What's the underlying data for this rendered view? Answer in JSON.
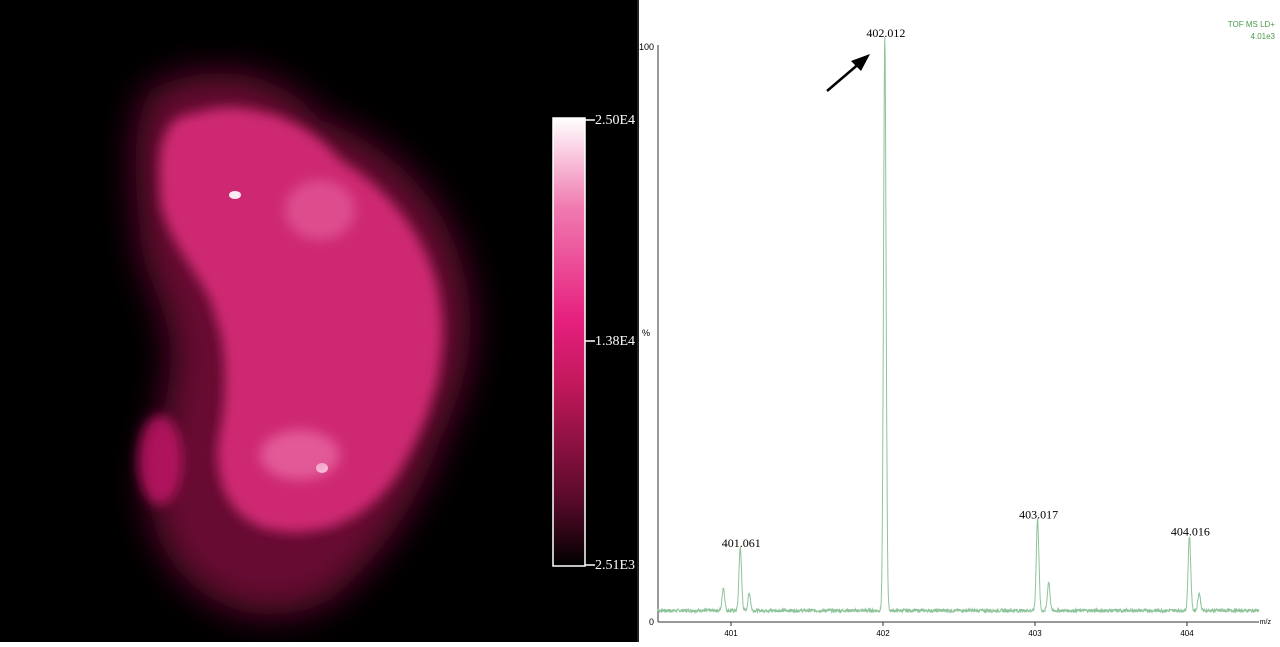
{
  "image_panel": {
    "colorbar": {
      "max_label": "2.50E4",
      "mid_label": "1.38E4",
      "min_label": "2.51E3",
      "colors": [
        "#000000",
        "#5a0a2a",
        "#c0185a",
        "#e6207e",
        "#f07ab0",
        "#ffffff"
      ]
    }
  },
  "spectrum_panel": {
    "header_line1": "TOF MS LD+",
    "header_line2": "4.01e3",
    "header_color": "#4a9a4a",
    "trace_color": "#8fc49a",
    "y_tick_top": "100",
    "y_tick_bottom": "0",
    "y_side_mark": "%",
    "x_unit_label": "m/z",
    "arrow_color": "#000000"
  },
  "chart_data": {
    "type": "line",
    "x_ticks": [
      "401",
      "402",
      "403",
      "404"
    ],
    "xlim": [
      400.5,
      405.0
    ],
    "ylim": [
      0,
      100
    ],
    "peaks": [
      {
        "label": "401.061",
        "mz": 401.061,
        "intensity": 11
      },
      {
        "label": "402.012",
        "mz": 402.012,
        "intensity": 100
      },
      {
        "label": "403.017",
        "mz": 403.017,
        "intensity": 16
      },
      {
        "label": "404.016",
        "mz": 404.016,
        "intensity": 13
      }
    ],
    "shoulders": [
      {
        "mz": 400.95,
        "intensity": 4
      },
      {
        "mz": 401.12,
        "intensity": 3
      },
      {
        "mz": 403.09,
        "intensity": 5
      },
      {
        "mz": 404.08,
        "intensity": 3
      }
    ],
    "baseline": 1
  }
}
